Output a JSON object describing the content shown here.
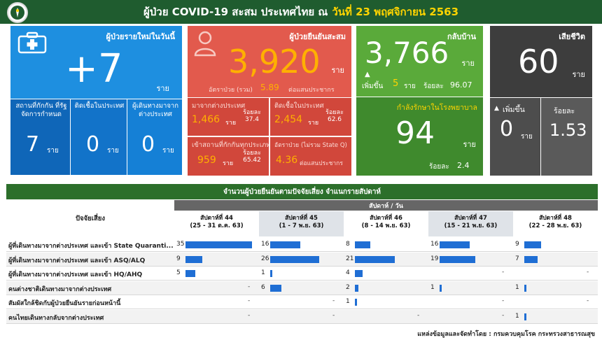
{
  "header": {
    "title": "ผู้ป่วย COVID-19 สะสม  ประเทศไทย  ณ",
    "date": "วันที่ 23 พฤศจิกายน 2563"
  },
  "new_cases": {
    "label": "ผู้ป่วยรายใหม่ในวันนี้",
    "value": "+7",
    "unit": "ราย",
    "sub": [
      {
        "label": "สถานที่กักกัน ที่รัฐจัดการกำหนด",
        "value": "7",
        "unit": "ราย"
      },
      {
        "label": "ติดเชื้อในประเทศ",
        "value": "0",
        "unit": "ราย"
      },
      {
        "label": "ผู้เดินทางมาจาก ต่างประเทศ",
        "value": "0",
        "unit": "ราย"
      }
    ]
  },
  "cumulative": {
    "label": "ผู้ป่วยยืนยันสะสม",
    "value": "3,920",
    "unit": "ราย",
    "rate_label": "อัตราป่วย (รวม)",
    "rate_value": "5.89",
    "rate_unit": "ต่อแสนประชากร",
    "sub": [
      {
        "label": "มาจากต่างประเทศ",
        "value": "1,466",
        "unit": "ราย",
        "pct_label": "ร้อยละ",
        "pct": "37.4"
      },
      {
        "label": "ติดเชื้อในประเทศ",
        "value": "2,454",
        "unit": "ราย",
        "pct_label": "ร้อยละ",
        "pct": "62.6"
      },
      {
        "label": "เข้าสถานที่กักกันทุกประเภท",
        "value": "959",
        "unit": "ราย",
        "pct_label": "ร้อยละ",
        "pct": "65.42"
      },
      {
        "label": "อัตราป่วย (ไม่รวม State Q)",
        "value": "4.36",
        "unit": "ต่อแสนประชากร"
      }
    ]
  },
  "recovered": {
    "label": "กลับบ้าน",
    "value": "3,766",
    "unit": "ราย",
    "inc_label": "เพิ่มขึ้น",
    "inc_value": "5",
    "inc_unit": "ราย",
    "pct_label": "ร้อยละ",
    "pct": "96.07"
  },
  "hospital": {
    "label": "กำลังรักษาในโรงพยาบาล",
    "value": "94",
    "unit": "ราย",
    "pct_label": "ร้อยละ",
    "pct": "2.4"
  },
  "deaths": {
    "label": "เสียชีวิต",
    "value": "60",
    "unit": "ราย",
    "inc_label": "เพิ่มขึ้น",
    "inc_value": "0",
    "inc_unit": "ราย",
    "pct_label": "ร้อยละ",
    "pct": "1.53"
  },
  "table": {
    "title": "จำนวนผู้ป่วยยืนยันตามปัจจัยเสี่ยง จำแนกรายสัปดาห์",
    "week_header": "สัปดาห์ / วัน",
    "factor_header": "ปัจจัยเสี่ยง",
    "weeks": [
      {
        "name": "สัปดาห์ที่ 44",
        "range": "(25 - 31 ต.ค. 63)"
      },
      {
        "name": "สัปดาห์ที่ 45",
        "range": "(1 - 7 พ.ย. 63)"
      },
      {
        "name": "สัปดาห์ที่ 46",
        "range": "(8 - 14 พ.ย. 63)"
      },
      {
        "name": "สัปดาห์ที่ 47",
        "range": "(15 - 21 พ.ย. 63)"
      },
      {
        "name": "สัปดาห์ที่ 48",
        "range": "(22 - 28 พ.ย. 63)"
      }
    ],
    "rows": [
      {
        "factor": "ผู้ที่เดินทางมาจากต่างประเทศ และเข้า State Quaranti...",
        "values": [
          35,
          16,
          8,
          16,
          9
        ]
      },
      {
        "factor": "ผู้ที่เดินทางมาจากต่างประเทศ และเข้า ASQ/ALQ",
        "values": [
          9,
          26,
          21,
          19,
          7
        ]
      },
      {
        "factor": "ผู้ที่เดินทางมาจากต่างประเทศ และเข้า HQ/AHQ",
        "values": [
          5,
          1,
          4,
          null,
          null
        ]
      },
      {
        "factor": "คนต่างชาติเดินทางมาจากต่างประเทศ",
        "values": [
          null,
          6,
          2,
          1,
          1
        ]
      },
      {
        "factor": "สัมผัสใกล้ชิดกับผู้ป่วยยืนยันรายก่อนหน้านี้",
        "values": [
          null,
          null,
          1,
          null,
          null
        ]
      },
      {
        "factor": "คนไทยเดินทางกลับจากต่างประเทศ",
        "values": [
          null,
          null,
          null,
          null,
          1
        ]
      }
    ],
    "empty_marker": "-"
  },
  "source": "แหล่งข้อมูลและจัดทำโดย : กรมควบคุมโรค กระทรวงสาธารณสุข",
  "colors": {
    "header_bg": "#1f5c2f",
    "date_accent": "#ffd400",
    "blue": "#1e8fe0",
    "red": "#e25a4d",
    "number_orange": "#ffb000",
    "green": "#5aaa3a",
    "grey": "#3d3d3d",
    "bar": "#1f6ed4"
  },
  "icons": [
    "ministry-logo-icon",
    "first-aid-kit-icon",
    "person-icon",
    "up-arrow-icon"
  ]
}
